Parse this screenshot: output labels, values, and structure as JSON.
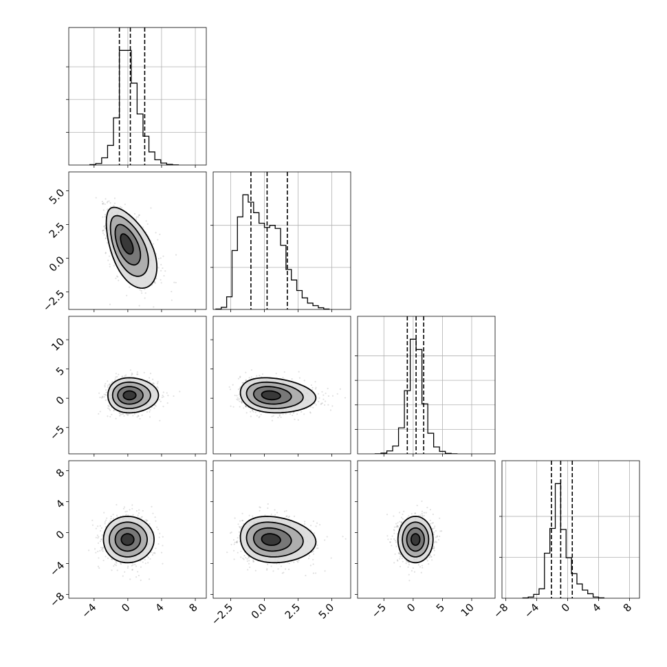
{
  "chart_data": {
    "type": "scatter",
    "subtype": "corner plot",
    "params": [
      {
        "name": "",
        "lim": [
          -7,
          9.3
        ],
        "ticks": [
          -4,
          0,
          4,
          8
        ],
        "tick_labels": [
          "−4",
          "0",
          "4",
          "8"
        ]
      },
      {
        "name": "",
        "lim": [
          -3.8,
          6.4
        ],
        "ticks": [
          -2.5,
          0.0,
          2.5,
          5.0
        ],
        "tick_labels": [
          "−2.5",
          "0.0",
          "2.5",
          "5.0"
        ]
      },
      {
        "name": "",
        "lim": [
          -9.5,
          14
        ],
        "ticks": [
          -5,
          0,
          5,
          10
        ],
        "tick_labels": [
          "−5",
          "0",
          "5",
          "10"
        ]
      },
      {
        "name": "",
        "lim": [
          -8.5,
          9.3
        ],
        "ticks": [
          -8,
          -4,
          0,
          4,
          8
        ],
        "tick_labels": [
          "−8",
          "−4",
          "0",
          "4",
          "8"
        ]
      }
    ],
    "histograms": [
      {
        "param": 0,
        "edges": [
          -4.5,
          -3.8,
          -3.1,
          -2.4,
          -1.7,
          -1.0,
          -0.3,
          0.4,
          1.1,
          1.8,
          2.5,
          3.2,
          3.9,
          4.6,
          5.3,
          6.0
        ],
        "counts": [
          3,
          12,
          55,
          150,
          360,
          875,
          875,
          625,
          390,
          220,
          100,
          40,
          15,
          5,
          1
        ],
        "quantiles": [
          -1.0,
          0.3,
          2.0
        ],
        "ytick_values": [
          250,
          500,
          750
        ]
      },
      {
        "param": 1,
        "edges": [
          -3.6,
          -3.2,
          -2.8,
          -2.4,
          -2.0,
          -1.6,
          -1.2,
          -0.8,
          -0.4,
          0.0,
          0.4,
          0.8,
          1.2,
          1.6,
          2.0,
          2.4,
          2.8,
          3.2,
          3.6,
          4.0,
          4.4,
          4.8
        ],
        "counts": [
          2,
          10,
          60,
          280,
          440,
          545,
          510,
          460,
          410,
          390,
          400,
          385,
          305,
          190,
          140,
          90,
          55,
          30,
          18,
          8,
          2
        ],
        "quantiles": [
          -1.0,
          0.2,
          1.7
        ],
        "ytick_values": [
          200,
          400
        ]
      },
      {
        "param": 2,
        "edges": [
          -6.5,
          -5.5,
          -4.5,
          -3.5,
          -2.5,
          -1.5,
          -0.5,
          0.5,
          1.5,
          2.5,
          3.5,
          4.5,
          5.5,
          6.5,
          7.5
        ],
        "counts": [
          2,
          15,
          60,
          160,
          530,
          1290,
          2340,
          2130,
          1020,
          420,
          140,
          50,
          10,
          2
        ],
        "quantiles": [
          -1.0,
          0.5,
          1.8
        ],
        "ytick_values": [
          500,
          1000,
          1500,
          2000
        ]
      },
      {
        "param": 3,
        "edges": [
          -5.8,
          -5.1,
          -4.4,
          -3.7,
          -3.0,
          -2.3,
          -1.6,
          -0.9,
          -0.2,
          0.5,
          1.2,
          1.9,
          2.6,
          3.3,
          4.0,
          4.7
        ],
        "counts": [
          8,
          30,
          95,
          230,
          1100,
          1705,
          2800,
          1680,
          990,
          600,
          350,
          200,
          110,
          30,
          10
        ],
        "quantiles": [
          -2.1,
          -0.9,
          0.6
        ],
        "ytick_values": [
          1000,
          2000
        ]
      }
    ],
    "pairs": [
      {
        "x": 0,
        "y": 1,
        "center": [
          0.0,
          1.0
        ],
        "sx": 1.5,
        "sy": 1.5,
        "rho": -0.55,
        "skew": [
          0.2,
          -0.1
        ]
      },
      {
        "x": 0,
        "y": 2,
        "center": [
          0.3,
          0.5
        ],
        "sx": 1.5,
        "sy": 1.5,
        "rho": 0.0,
        "skew": [
          0.15,
          0.0
        ]
      },
      {
        "x": 1,
        "y": 2,
        "center": [
          0.6,
          0.5
        ],
        "sx": 1.4,
        "sy": 1.5,
        "rho": -0.15,
        "skew": [
          0.2,
          0.0
        ]
      },
      {
        "x": 0,
        "y": 3,
        "center": [
          0.0,
          -0.9
        ],
        "sx": 1.5,
        "sy": 1.5,
        "rho": 0.0,
        "skew": [
          0.05,
          0.0
        ]
      },
      {
        "x": 1,
        "y": 3,
        "center": [
          0.6,
          -0.9
        ],
        "sx": 1.4,
        "sy": 1.5,
        "rho": -0.1,
        "skew": [
          0.2,
          0.0
        ]
      },
      {
        "x": 2,
        "y": 3,
        "center": [
          0.4,
          -0.9
        ],
        "sx": 1.5,
        "sy": 1.5,
        "rho": 0.0,
        "skew": [
          0.0,
          0.0
        ]
      }
    ],
    "contour_levels_sigma": [
      0.5,
      1.0,
      1.5,
      2.0
    ],
    "grid": true,
    "legend": "none",
    "title": "",
    "xlabel": "",
    "ylabel": ""
  }
}
